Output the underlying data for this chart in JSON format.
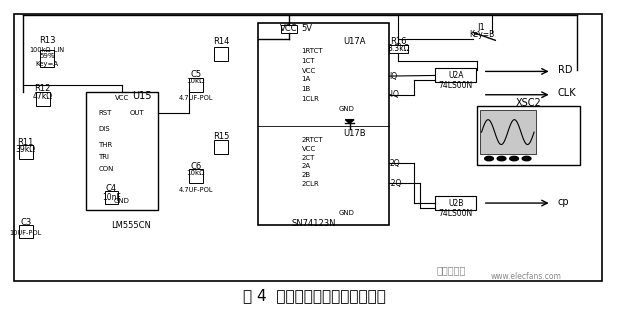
{
  "caption": "图 4  时基控制电路的设计与仿真",
  "caption_fontsize": 11,
  "bg_color": "#ffffff",
  "fig_width": 6.28,
  "fig_height": 3.14,
  "dpi": 100,
  "watermark1": "电子发烧友",
  "watermark2": "www.elecfans.com",
  "watermark_color": "#888888"
}
